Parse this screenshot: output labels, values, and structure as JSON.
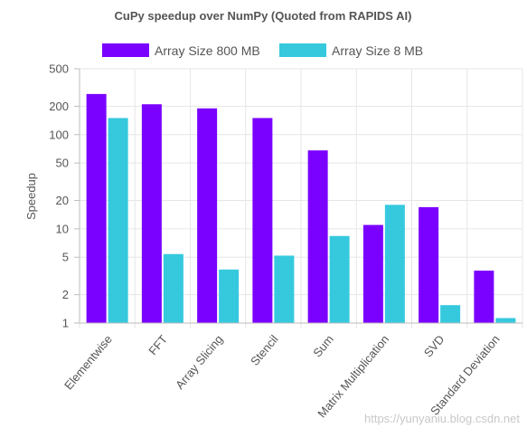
{
  "chart_data": {
    "type": "bar",
    "title": "CuPy speedup over NumPy (Quoted from RAPIDS AI)",
    "ylabel": "Speedup",
    "xlabel": "",
    "yscale": "log",
    "ylim": [
      1,
      500
    ],
    "yticks": [
      1,
      2,
      5,
      10,
      20,
      50,
      100,
      200,
      500
    ],
    "ytick_labels": [
      "1",
      "2",
      "5",
      "10",
      "20",
      "50",
      "100",
      "200",
      "500"
    ],
    "grid": true,
    "legend_position": "top",
    "categories": [
      "Elementwise",
      "FFT",
      "Array Slicing",
      "Stencil",
      "Sum",
      "Matrix Multiplication",
      "SVD",
      "Standard Deviation"
    ],
    "series": [
      {
        "name": "Array Size 800 MB",
        "color": "#7a00ff",
        "values": [
          270,
          210,
          190,
          150,
          68,
          11,
          17,
          3.6
        ]
      },
      {
        "name": "Array Size 8 MB",
        "color": "#36c9de",
        "values": [
          150,
          5.4,
          3.7,
          5.2,
          8.4,
          18,
          1.55,
          1.13
        ]
      }
    ]
  },
  "watermark": "https://yunyaniu.blog.csdn.net"
}
